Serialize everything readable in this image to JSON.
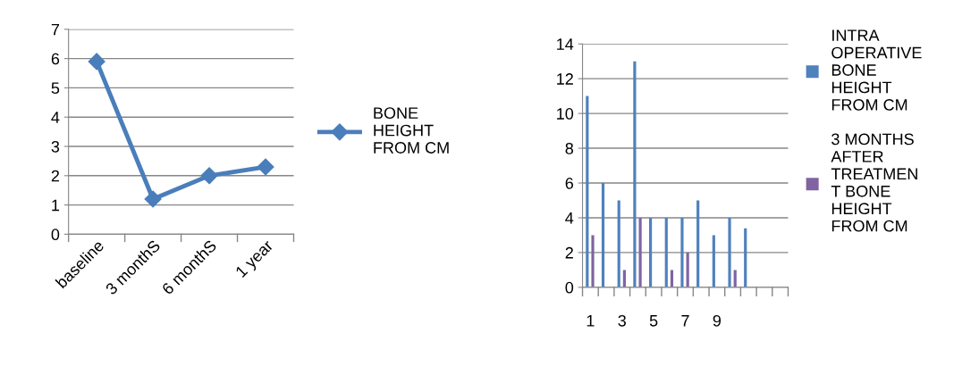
{
  "chart_data": [
    {
      "type": "line",
      "categories": [
        "baseline",
        "3 monthS",
        "6 monthS",
        "1 year"
      ],
      "ylim": [
        0,
        7
      ],
      "yticks": [
        0,
        1,
        2,
        3,
        4,
        5,
        6,
        7
      ],
      "grid": "y",
      "legend": "right",
      "marker": "diamond",
      "line_style": "solid",
      "series": [
        {
          "name": "BONE\nHEIGHT\nFROM CM",
          "color": "#4a7ebb",
          "values": [
            5.9,
            1.2,
            2.0,
            2.3
          ]
        }
      ]
    },
    {
      "type": "bar",
      "categories": [
        "1",
        null,
        "3",
        null,
        "5",
        null,
        "7",
        null,
        "9",
        null,
        null,
        null,
        null
      ],
      "ylim": [
        0,
        14
      ],
      "yticks": [
        0,
        2,
        4,
        6,
        8,
        10,
        12,
        14
      ],
      "grid": "y",
      "legend": "top right",
      "series": [
        {
          "name": "INTRA\nOPERATIVE\nBONE\nHEIGHT\nFROM CM",
          "color": "#4f81bd",
          "values": [
            11,
            6,
            5,
            13,
            4,
            4,
            4,
            5,
            3,
            4,
            3.4,
            null,
            null
          ]
        },
        {
          "name": "3 MONTHS\nAFTER\nTREATMEN\nT BONE\nHEIGHT\nFROM CM",
          "color": "#8064a2",
          "values": [
            3,
            null,
            1,
            4,
            null,
            1,
            2,
            null,
            null,
            1,
            null,
            null,
            null
          ]
        }
      ]
    }
  ]
}
